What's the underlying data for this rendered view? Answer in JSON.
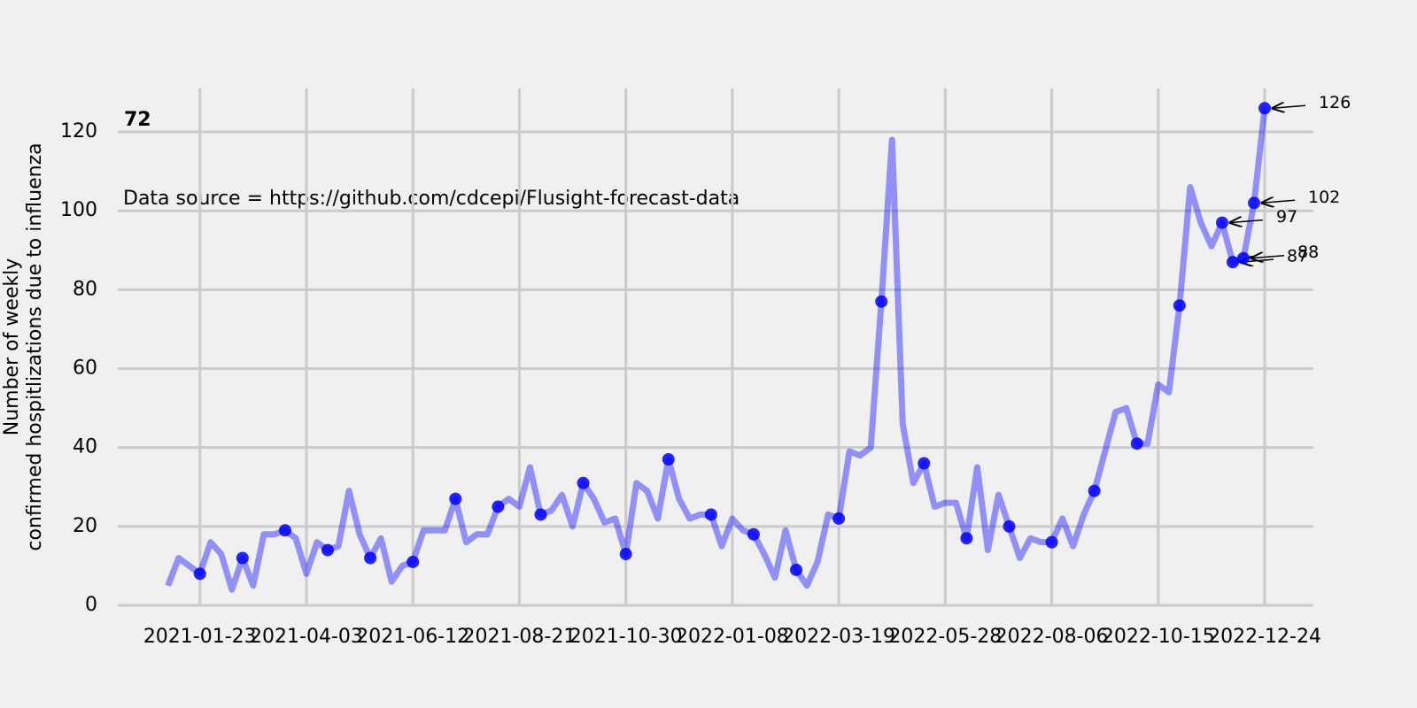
{
  "chart_data": {
    "type": "line",
    "title": "72",
    "annotation": "Data source = https://github.com/cdcepi/Flusight-forecast-data",
    "y_label": [
      "Number of weekly",
      "confirmed hospitlizations due to influenza"
    ],
    "x": [
      "2021-01-02",
      "2021-01-09",
      "2021-01-16",
      "2021-01-23",
      "2021-01-30",
      "2021-02-06",
      "2021-02-13",
      "2021-02-20",
      "2021-02-27",
      "2021-03-06",
      "2021-03-13",
      "2021-03-20",
      "2021-03-27",
      "2021-04-03",
      "2021-04-10",
      "2021-04-17",
      "2021-04-24",
      "2021-05-01",
      "2021-05-08",
      "2021-05-15",
      "2021-05-22",
      "2021-05-29",
      "2021-06-05",
      "2021-06-12",
      "2021-06-19",
      "2021-06-26",
      "2021-07-03",
      "2021-07-10",
      "2021-07-17",
      "2021-07-24",
      "2021-07-31",
      "2021-08-07",
      "2021-08-14",
      "2021-08-21",
      "2021-08-28",
      "2021-09-04",
      "2021-09-11",
      "2021-09-18",
      "2021-09-25",
      "2021-10-02",
      "2021-10-09",
      "2021-10-16",
      "2021-10-23",
      "2021-10-30",
      "2021-11-06",
      "2021-11-13",
      "2021-11-20",
      "2021-11-27",
      "2021-12-04",
      "2021-12-11",
      "2021-12-18",
      "2021-12-25",
      "2022-01-01",
      "2022-01-08",
      "2022-01-15",
      "2022-01-22",
      "2022-01-29",
      "2022-02-05",
      "2022-02-12",
      "2022-02-19",
      "2022-02-26",
      "2022-03-05",
      "2022-03-12",
      "2022-03-19",
      "2022-03-26",
      "2022-04-02",
      "2022-04-09",
      "2022-04-16",
      "2022-04-23",
      "2022-04-30",
      "2022-05-07",
      "2022-05-14",
      "2022-05-21",
      "2022-05-28",
      "2022-06-04",
      "2022-06-11",
      "2022-06-18",
      "2022-06-25",
      "2022-07-02",
      "2022-07-09",
      "2022-07-16",
      "2022-07-23",
      "2022-07-30",
      "2022-08-06",
      "2022-08-13",
      "2022-08-20",
      "2022-08-27",
      "2022-09-03",
      "2022-09-10",
      "2022-09-17",
      "2022-09-24",
      "2022-10-01",
      "2022-10-08",
      "2022-10-15",
      "2022-10-22",
      "2022-10-29",
      "2022-11-05",
      "2022-11-12",
      "2022-11-19",
      "2022-11-26",
      "2022-12-03",
      "2022-12-10",
      "2022-12-17",
      "2022-12-24"
    ],
    "series": [
      {
        "color": "#0000ff",
        "values": [
          5,
          12,
          10,
          8,
          16,
          13,
          4,
          12,
          5,
          18,
          18,
          19,
          17,
          8,
          16,
          14,
          15,
          29,
          18,
          12,
          17,
          6,
          10,
          11,
          19,
          19,
          19,
          27,
          16,
          18,
          18,
          25,
          27,
          25,
          35,
          23,
          24,
          28,
          20,
          31,
          27,
          21,
          22,
          13,
          31,
          29,
          22,
          37,
          27,
          22,
          23,
          23,
          15,
          22,
          19,
          18,
          13,
          7,
          19,
          9,
          5,
          11,
          23,
          22,
          39,
          38,
          40,
          77,
          118,
          46,
          31,
          36,
          25,
          26,
          26,
          17,
          35,
          14,
          28,
          20,
          12,
          17,
          16,
          16,
          22,
          15,
          23,
          29,
          39,
          49,
          50,
          41,
          41,
          56,
          54,
          76,
          106,
          97,
          91,
          97,
          87,
          88,
          102,
          126
        ]
      },
      {
        "color": "#0000ff",
        "x": [
          "2021-01-23",
          "2021-02-20",
          "2021-03-20",
          "2021-04-17",
          "2021-05-15",
          "2021-06-12",
          "2021-07-10",
          "2021-08-07",
          "2021-09-04",
          "2021-10-02",
          "2021-10-30",
          "2021-11-27",
          "2021-12-25",
          "2022-01-22",
          "2022-02-19",
          "2022-03-19",
          "2022-04-16",
          "2022-05-14",
          "2022-06-11",
          "2022-07-09",
          "2022-08-06",
          "2022-09-03",
          "2022-10-01",
          "2022-10-29",
          "2022-11-26",
          "2022-12-03",
          "2022-12-10",
          "2022-12-17",
          "2022-12-24"
        ],
        "values": [
          8,
          12,
          19,
          14,
          12,
          11,
          27,
          25,
          23,
          31,
          13,
          37,
          23,
          18,
          9,
          22,
          77,
          36,
          17,
          20,
          16,
          29,
          41,
          76,
          97,
          87,
          88,
          102,
          126
        ]
      }
    ],
    "xlim": [
      "2020-11-30",
      "2023-01-25"
    ],
    "xticks": [
      "2021-01-23",
      "2021-04-03",
      "2021-06-12",
      "2021-08-21",
      "2021-10-30",
      "2022-01-08",
      "2022-03-19",
      "2022-05-28",
      "2022-08-06",
      "2022-10-15",
      "2022-12-24"
    ],
    "ylim": [
      0,
      131
    ],
    "yticks": [
      0,
      20,
      40,
      60,
      80,
      100,
      120
    ],
    "grid": true
  }
}
